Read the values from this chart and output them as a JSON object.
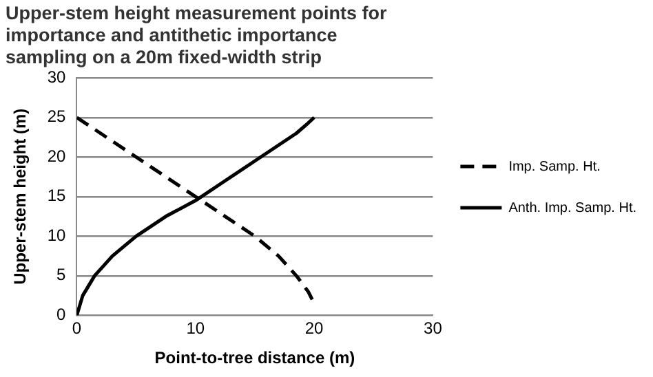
{
  "chart_data": {
    "type": "line",
    "title": "Upper-stem height measurement points for importance and antithetic importance sampling on a 20m fixed-width strip",
    "xlabel": "Point-to-tree distance (m)",
    "ylabel": "Upper-stem height (m)",
    "xlim": [
      0,
      30
    ],
    "xticks": [
      0,
      10,
      20,
      30
    ],
    "ylim": [
      0,
      30
    ],
    "yticks": [
      0,
      5,
      10,
      15,
      20,
      25,
      30
    ],
    "grid": "y",
    "legend": "right",
    "marker": "none",
    "series": [
      {
        "name": "Imp. Samp. Ht.",
        "color": "#000000",
        "line_style": "dashed",
        "x": [
          0,
          2.5,
          5,
          7.5,
          10,
          12.5,
          15,
          17,
          18.5,
          19.5,
          20
        ],
        "values": [
          25,
          22.5,
          20,
          17.5,
          15,
          12.5,
          10,
          7.5,
          5,
          3,
          1.5
        ]
      },
      {
        "name": "Anth. Imp. Samp. Ht.",
        "color": "#000000",
        "line_style": "solid",
        "x": [
          0,
          0.5,
          1.5,
          3,
          5,
          7.5,
          10,
          12.5,
          15,
          17,
          18.5,
          19.5,
          20
        ],
        "values": [
          0,
          2.5,
          5,
          7.5,
          10,
          12.5,
          14.5,
          17,
          19.5,
          21.5,
          23,
          24.3,
          25
        ]
      }
    ]
  }
}
